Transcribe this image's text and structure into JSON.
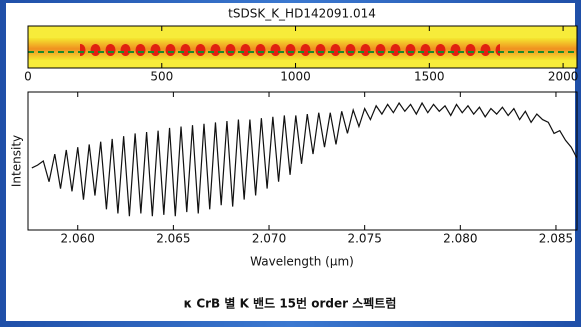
{
  "chart_data": [
    {
      "type": "image",
      "title": "tSDSK_K_HD142091.014",
      "xlim": [
        0,
        2052
      ],
      "xticks": [
        0,
        500,
        1000,
        1500,
        2000
      ]
    },
    {
      "type": "line",
      "ylabel": "Intensity",
      "xlabel": "Wavelength (μm)",
      "xlim": [
        2.0574,
        2.0861
      ],
      "ylim": [
        0,
        1
      ],
      "xticks": [
        {
          "value": 2.06,
          "label": "2.060"
        },
        {
          "value": 2.065,
          "label": "2.065"
        },
        {
          "value": 2.07,
          "label": "2.070"
        },
        {
          "value": 2.075,
          "label": "2.075"
        },
        {
          "value": 2.08,
          "label": "2.080"
        },
        {
          "value": 2.085,
          "label": "2.085"
        }
      ],
      "color": "#111111",
      "x": [
        2.0576,
        2.0579,
        2.0582,
        2.0585,
        2.0588,
        2.0591,
        2.0594,
        2.0597,
        2.06,
        2.0603,
        2.0606,
        2.0609,
        2.0612,
        2.0615,
        2.0618,
        2.0621,
        2.0624,
        2.0627,
        2.063,
        2.0633,
        2.0636,
        2.0639,
        2.0642,
        2.0645,
        2.0648,
        2.0651,
        2.0654,
        2.0657,
        2.066,
        2.0663,
        2.0666,
        2.0669,
        2.0672,
        2.0675,
        2.0678,
        2.0681,
        2.0684,
        2.0687,
        2.069,
        2.0693,
        2.0696,
        2.0699,
        2.0702,
        2.0705,
        2.0708,
        2.0711,
        2.0714,
        2.0717,
        2.072,
        2.0723,
        2.0726,
        2.0729,
        2.0732,
        2.0735,
        2.0738,
        2.0741,
        2.0744,
        2.0747,
        2.075,
        2.0753,
        2.0756,
        2.0759,
        2.0762,
        2.0765,
        2.0768,
        2.0771,
        2.0774,
        2.0777,
        2.078,
        2.0783,
        2.0786,
        2.0789,
        2.0792,
        2.0795,
        2.0798,
        2.0801,
        2.0804,
        2.0807,
        2.081,
        2.0813,
        2.0816,
        2.0819,
        2.0822,
        2.0825,
        2.0828,
        2.0831,
        2.0834,
        2.0837,
        2.084,
        2.0843,
        2.0846,
        2.0849,
        2.0852,
        2.0855,
        2.0858,
        2.0861
      ],
      "values": [
        0.45,
        0.47,
        0.5,
        0.35,
        0.55,
        0.3,
        0.58,
        0.28,
        0.6,
        0.22,
        0.62,
        0.25,
        0.64,
        0.15,
        0.66,
        0.12,
        0.68,
        0.1,
        0.7,
        0.12,
        0.71,
        0.1,
        0.72,
        0.11,
        0.74,
        0.1,
        0.75,
        0.13,
        0.76,
        0.12,
        0.77,
        0.15,
        0.78,
        0.18,
        0.79,
        0.17,
        0.8,
        0.22,
        0.8,
        0.25,
        0.81,
        0.3,
        0.82,
        0.35,
        0.83,
        0.4,
        0.83,
        0.48,
        0.84,
        0.55,
        0.85,
        0.6,
        0.85,
        0.62,
        0.86,
        0.7,
        0.87,
        0.75,
        0.88,
        0.8,
        0.9,
        0.84,
        0.91,
        0.85,
        0.92,
        0.86,
        0.91,
        0.84,
        0.92,
        0.85,
        0.91,
        0.86,
        0.9,
        0.83,
        0.91,
        0.85,
        0.9,
        0.84,
        0.89,
        0.82,
        0.88,
        0.84,
        0.89,
        0.83,
        0.88,
        0.8,
        0.86,
        0.78,
        0.84,
        0.8,
        0.78,
        0.7,
        0.72,
        0.65,
        0.6,
        0.52
      ]
    }
  ],
  "caption": "κ CrB 별 K 밴드 15번 order 스펙트럼"
}
